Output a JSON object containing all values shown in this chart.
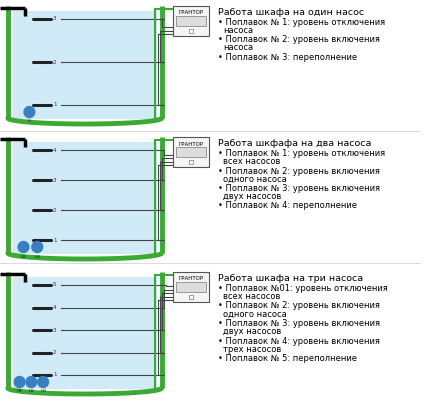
{
  "bg_color": "#ffffff",
  "tank_color": "#3aaa35",
  "water_color": "#d0eaf8",
  "pump_color": "#3a7fc1",
  "wire_color": "#444444",
  "green_wire": "#3aaa35",
  "title_fontsize": 6.8,
  "text_fontsize": 6.0,
  "panels": [
    {
      "title": "Работа шкафа на один насос",
      "bullets": [
        [
          "Поплавок № 1: уровень отключения",
          "насоса"
        ],
        [
          "Поплавок № 2: уровень включения",
          "насоса"
        ],
        [
          "Поплавок № 3: переполнение"
        ]
      ],
      "num_pumps": 1,
      "num_floats": 3
    },
    {
      "title": "Работа шкфафа на два насоса",
      "bullets": [
        [
          "Поплавок № 1: уровень отключения",
          "всех насосов"
        ],
        [
          "Поплавок № 2: уровень включения",
          "одного насоса"
        ],
        [
          "Поплавок № 3: уровень включения",
          "двух насосов"
        ],
        [
          "Поплавок № 4: переполнение"
        ]
      ],
      "num_pumps": 2,
      "num_floats": 4
    },
    {
      "title": "Работа шкафа на три насоса",
      "bullets": [
        [
          "Поплавок №01: уровень отключения",
          "всех насосов"
        ],
        [
          "Поплавок № 2: уровень включения",
          "одного насоса"
        ],
        [
          "Поплавок № 3: уровень включения",
          "двух насосов"
        ],
        [
          "Поплавок № 4: уровень включения",
          "трех насосов"
        ],
        [
          "Поплавок № 5: переполнение"
        ]
      ],
      "num_pumps": 3,
      "num_floats": 5
    }
  ]
}
